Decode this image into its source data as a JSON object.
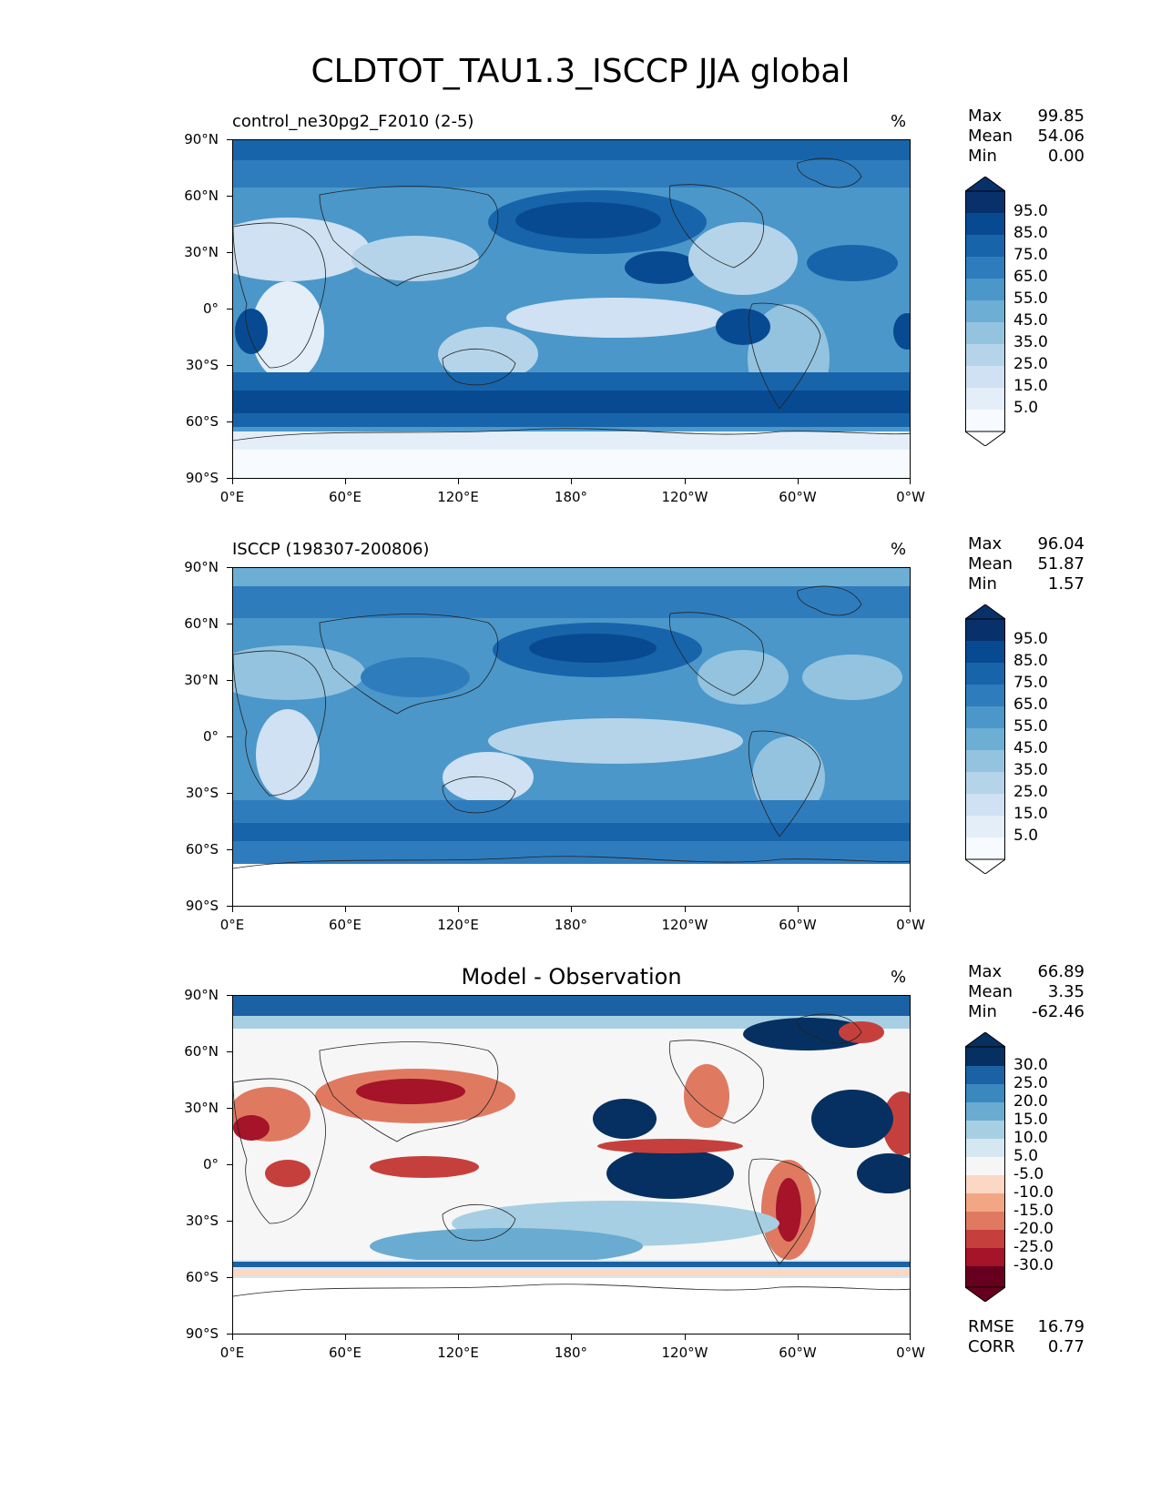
{
  "title": "CLDTOT_TAU1.3_ISCCP JJA global",
  "axes": {
    "lat_labels": [
      "90°N",
      "60°N",
      "30°N",
      "0°",
      "30°S",
      "60°S",
      "90°S"
    ],
    "lon_labels": [
      "0°E",
      "60°E",
      "120°E",
      "180°",
      "120°W",
      "60°W",
      "0°W"
    ]
  },
  "colors": {
    "blues": [
      "#f7fbff",
      "#e3eef9",
      "#cfe1f2",
      "#b5d4e9",
      "#93c3df",
      "#6daed5",
      "#4b97c9",
      "#2f7cbd",
      "#1764ab",
      "#084a92",
      "#08306b"
    ],
    "diff": [
      "#67001f",
      "#a51429",
      "#c5403c",
      "#df7a61",
      "#f3a683",
      "#fbd7c4",
      "#f6f6f6",
      "#d5e7f1",
      "#a6cfe3",
      "#6aacd1",
      "#3b88bf",
      "#1b62a5",
      "#053061"
    ]
  },
  "panels": [
    {
      "subtitle": "control_ne30pg2_F2010 (2-5)",
      "units": "%",
      "stats": [
        {
          "label": "Max",
          "value": "99.85"
        },
        {
          "label": "Mean",
          "value": "54.06"
        },
        {
          "label": "Min",
          "value": "0.00"
        }
      ],
      "colorbar_labels": [
        "95.0",
        "85.0",
        "75.0",
        "65.0",
        "55.0",
        "45.0",
        "35.0",
        "25.0",
        "15.0",
        "5.0"
      ]
    },
    {
      "subtitle": "ISCCP (198307-200806)",
      "units": "%",
      "stats": [
        {
          "label": "Max",
          "value": "96.04"
        },
        {
          "label": "Mean",
          "value": "51.87"
        },
        {
          "label": "Min",
          "value": "1.57"
        }
      ],
      "colorbar_labels": [
        "95.0",
        "85.0",
        "75.0",
        "65.0",
        "55.0",
        "45.0",
        "35.0",
        "25.0",
        "15.0",
        "5.0"
      ]
    },
    {
      "subtitle": "Model - Observation",
      "units": "%",
      "stats": [
        {
          "label": "Max",
          "value": "66.89"
        },
        {
          "label": "Mean",
          "value": "3.35"
        },
        {
          "label": "Min",
          "value": "-62.46"
        }
      ],
      "colorbar_labels": [
        "30.0",
        "25.0",
        "20.0",
        "15.0",
        "10.0",
        "5.0",
        "-5.0",
        "-10.0",
        "-15.0",
        "-20.0",
        "-25.0",
        "-30.0"
      ],
      "metrics": [
        {
          "label": "RMSE",
          "value": "16.79"
        },
        {
          "label": "CORR",
          "value": "0.77"
        }
      ]
    }
  ]
}
